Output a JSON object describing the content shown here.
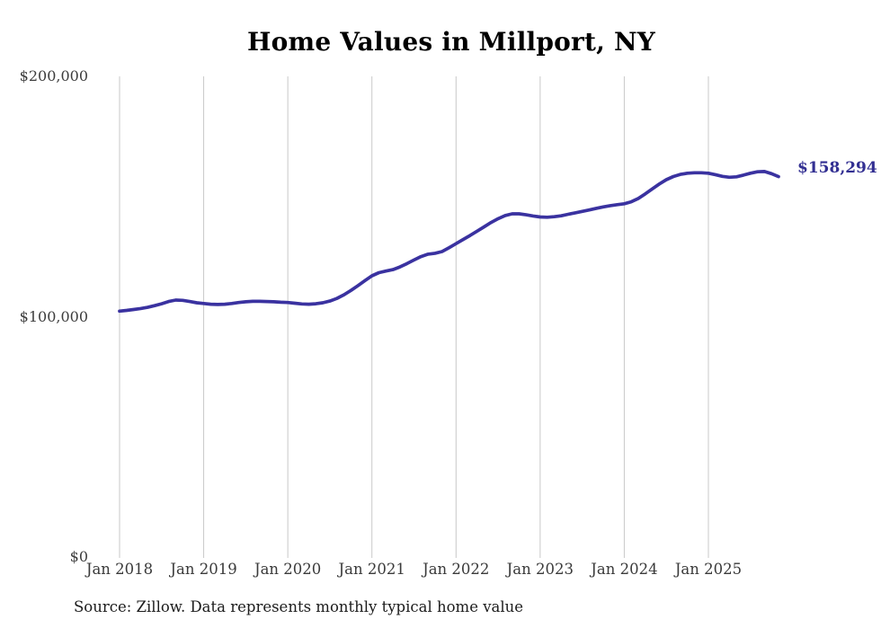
{
  "title": "Home Values in Millport, NY",
  "source_note": "Source: Zillow. Data represents monthly typical home value",
  "end_label": "$158,294",
  "colors": {
    "line": "#3a32a0",
    "end_label": "#322f92",
    "gridline": "#c9c9c9",
    "title": "#000000",
    "axis_label": "#3a3a3a",
    "background": "#ffffff"
  },
  "chart_data": {
    "type": "line",
    "title": "Home Values in Millport, NY",
    "xlabel": "",
    "ylabel": "",
    "x_ticks": [
      "Jan 2018",
      "Jan 2019",
      "Jan 2020",
      "Jan 2021",
      "Jan 2022",
      "Jan 2023",
      "Jan 2024",
      "Jan 2025"
    ],
    "y_ticks": [
      "$0",
      "$100,000",
      "$200,000"
    ],
    "y_tick_values": [
      0,
      100000,
      200000
    ],
    "ylim": [
      0,
      200000
    ],
    "grid": "vertical-only",
    "legend": "none",
    "series": [
      {
        "name": "Monthly typical home value",
        "start_month": "2018-01",
        "months_per_point": 1,
        "final_value": 158294,
        "final_value_label": "$158,294",
        "values": [
          102300,
          102600,
          103000,
          103400,
          103900,
          104600,
          105400,
          106300,
          106900,
          106800,
          106300,
          105800,
          105500,
          105200,
          105100,
          105200,
          105500,
          105900,
          106200,
          106400,
          106400,
          106300,
          106200,
          106000,
          105900,
          105600,
          105300,
          105200,
          105400,
          105800,
          106500,
          107600,
          109100,
          110900,
          112900,
          115000,
          117000,
          118300,
          119000,
          119600,
          120700,
          122100,
          123600,
          125000,
          126000,
          126400,
          127100,
          128700,
          130400,
          132100,
          133800,
          135600,
          137400,
          139200,
          140800,
          142100,
          142800,
          142800,
          142400,
          141900,
          141500,
          141400,
          141600,
          142000,
          142600,
          143200,
          143800,
          144400,
          145100,
          145700,
          146200,
          146600,
          147000,
          147800,
          149200,
          151100,
          153200,
          155200,
          157000,
          158300,
          159200,
          159700,
          159900,
          159900,
          159700,
          159100,
          158400,
          158000,
          158200,
          158900,
          159700,
          160300,
          160400,
          159500,
          158294
        ]
      }
    ]
  }
}
